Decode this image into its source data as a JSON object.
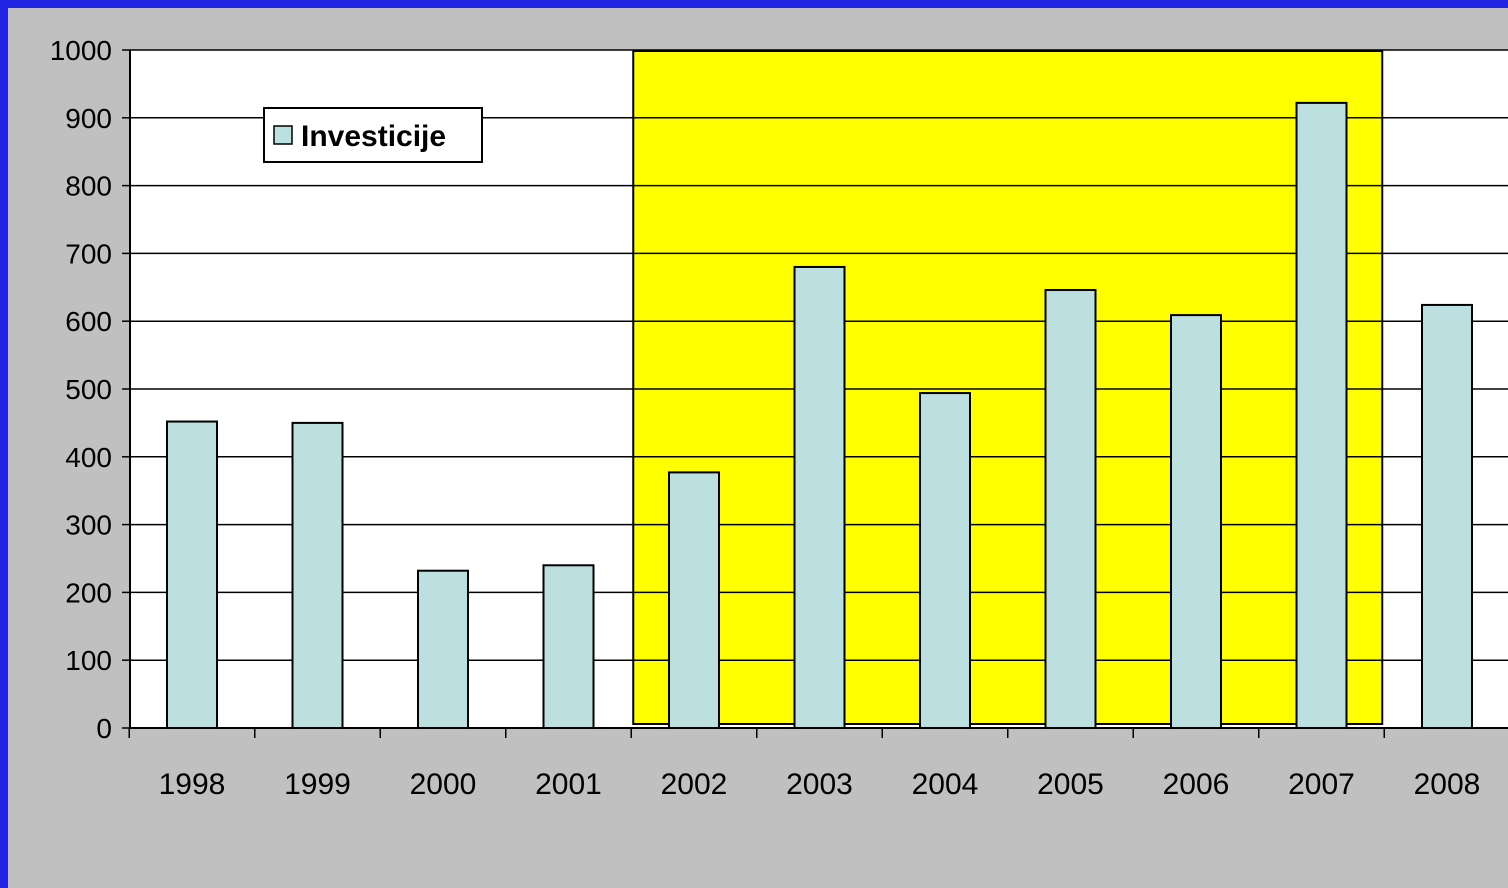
{
  "colors": {
    "slide_border": "#1f24e0",
    "slide_background": "#c0c0c0",
    "plot_background": "#ffffff",
    "highlight": "#ffff00",
    "bar_fill": "#bcdfe0",
    "bar_stroke": "#000000"
  },
  "chart_data": {
    "type": "bar",
    "title": "",
    "xlabel": "",
    "ylabel": "",
    "categories": [
      "1998",
      "1999",
      "2000",
      "2001",
      "2002",
      "2003",
      "2004",
      "2005",
      "2006",
      "2007",
      "2008"
    ],
    "series": [
      {
        "name": "Investicije",
        "values": [
          452,
          450,
          232,
          240,
          377,
          680,
          494,
          646,
          609,
          922,
          624
        ]
      }
    ],
    "ylim": [
      0,
      1000
    ],
    "yticks": [
      0,
      100,
      200,
      300,
      400,
      500,
      600,
      700,
      800,
      900,
      1000
    ],
    "grid": true,
    "legend": "top-left",
    "highlight_range": [
      "2002",
      "2007"
    ]
  }
}
